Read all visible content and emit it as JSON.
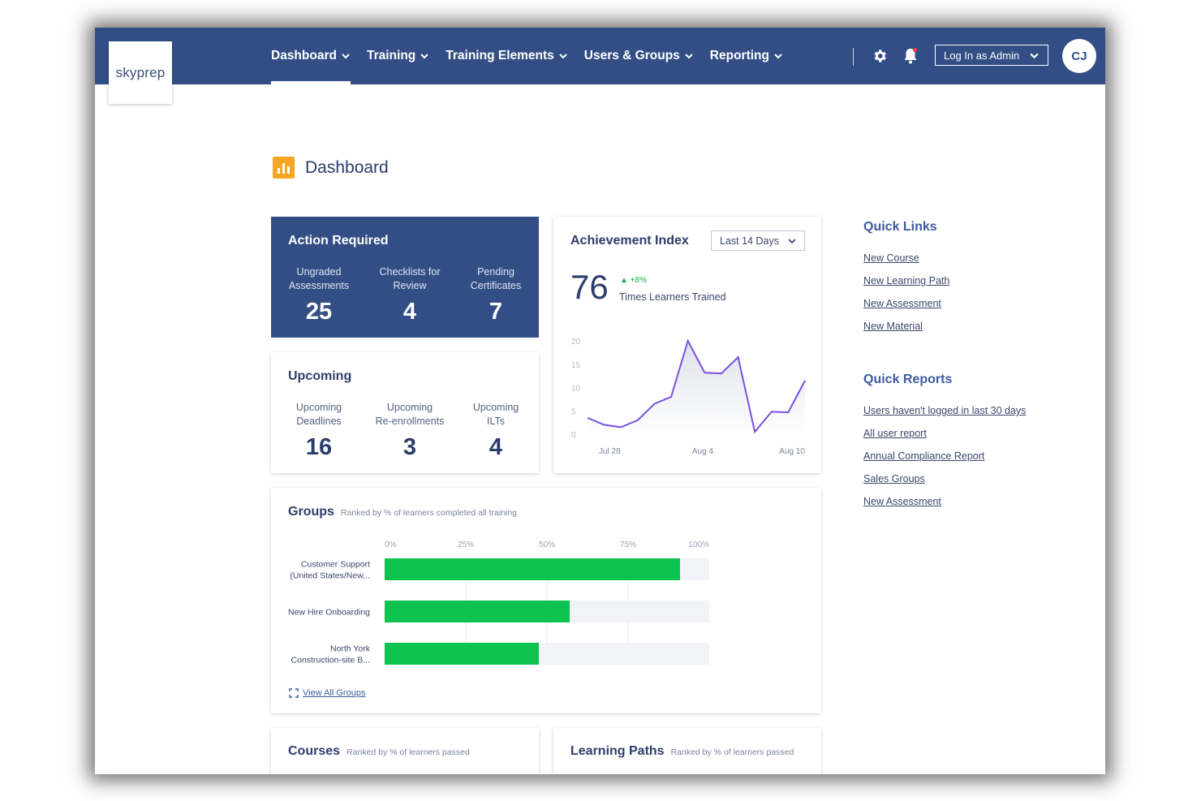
{
  "brand": {
    "logo_text": "skyprep"
  },
  "nav": {
    "items": [
      {
        "label": "Dashboard",
        "active": true
      },
      {
        "label": "Training"
      },
      {
        "label": "Training Elements"
      },
      {
        "label": "Users & Groups"
      },
      {
        "label": "Reporting"
      }
    ],
    "admin_select": "Log In as Admin",
    "avatar_initials": "CJ",
    "icons": {
      "settings": "gear-icon",
      "notifications": "bell-icon",
      "accent": "#324e84"
    }
  },
  "page": {
    "title": "Dashboard",
    "icon_color": "#f6a623"
  },
  "action_required": {
    "title": "Action Required",
    "stats": [
      {
        "label1": "Ungraded",
        "label2": "Assessments",
        "value": "25"
      },
      {
        "label1": "Checklists for",
        "label2": "Review",
        "value": "4"
      },
      {
        "label1": "Pending",
        "label2": "Certificates",
        "value": "7"
      }
    ]
  },
  "upcoming": {
    "title": "Upcoming",
    "stats": [
      {
        "label1": "Upcoming",
        "label2": "Deadlines",
        "value": "16"
      },
      {
        "label1": "Upcoming",
        "label2": "Re-enrollments",
        "value": "3"
      },
      {
        "label1": "Upcoming",
        "label2": "ILTs",
        "value": "4"
      }
    ]
  },
  "achievement": {
    "title": "Achievement Index",
    "range": "Last 14 Days",
    "value": "76",
    "change": "+8%",
    "subtitle": "Times Learners Trained",
    "chart_data": {
      "type": "area",
      "x_ticks": [
        "Jul 28",
        "Aug 4",
        "Aug 10"
      ],
      "y_ticks": [
        "20",
        "15",
        "10",
        "5",
        "0"
      ],
      "ylim": [
        0,
        20
      ],
      "values": [
        3.5,
        2,
        1.5,
        3,
        6.5,
        8,
        20,
        13.2,
        13,
        16.5,
        0.5,
        4.8,
        4.7,
        11.5
      ],
      "color": "#7b4fe0"
    }
  },
  "groups": {
    "title": "Groups",
    "note": "Ranked by % of learners completed all training",
    "chart_data": {
      "type": "bar",
      "x_ticks": [
        "0%",
        "25%",
        "50%",
        "75%",
        "100%"
      ],
      "xlim": [
        0,
        100
      ],
      "categories": [
        {
          "line1": "Customer Support",
          "line2": "(United States/New..."
        },
        {
          "line1": "New Hire Onboarding",
          "line2": ""
        },
        {
          "line1": "North York",
          "line2": "Construction-site B..."
        }
      ],
      "values": [
        91,
        57,
        47.5
      ],
      "bar_color": "#0dc34f"
    },
    "view_all": "View All Groups"
  },
  "courses": {
    "title": "Courses",
    "note": "Ranked by % of learners passed"
  },
  "learning_paths": {
    "title": "Learning Paths",
    "note": "Ranked by % of learners passed"
  },
  "quick_links": {
    "title": "Quick Links",
    "items": [
      "New Course",
      "New Learning Path",
      "New Assessment",
      "New Material"
    ]
  },
  "quick_reports": {
    "title": "Quick Reports",
    "items": [
      "Users haven't logged in last 30 days",
      "All user report",
      "Annual Compliance Report",
      "Sales Groups",
      "New Assessment"
    ]
  }
}
